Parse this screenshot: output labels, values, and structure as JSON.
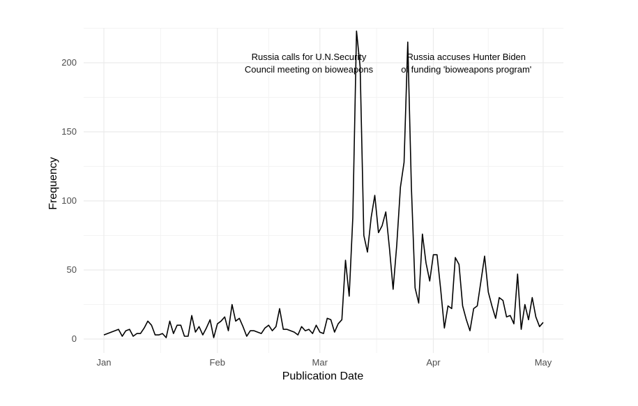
{
  "chart_data": {
    "type": "line",
    "title": "",
    "xlabel": "Publication Date",
    "ylabel": "Frequency",
    "ylim": [
      -10,
      228
    ],
    "yticks": [
      0,
      50,
      100,
      150,
      200
    ],
    "xticks": [
      {
        "label": "Jan",
        "day": 0
      },
      {
        "label": "Feb",
        "day": 31
      },
      {
        "label": "Mar",
        "day": 59
      },
      {
        "label": "Apr",
        "day": 90
      },
      {
        "label": "May",
        "day": 120
      }
    ],
    "x_start": "Jan 1",
    "x_unit": "day",
    "grid": true,
    "series": [
      {
        "name": "Frequency",
        "color": "#000000",
        "values": [
          3,
          4,
          5,
          6,
          7,
          2,
          6,
          7,
          2,
          4,
          4,
          8,
          13,
          10,
          3,
          3,
          4,
          1,
          13,
          4,
          10,
          10,
          2,
          2,
          17,
          5,
          9,
          3,
          8,
          14,
          1,
          11,
          13,
          16,
          6,
          25,
          13,
          15,
          9,
          2,
          6,
          6,
          5,
          4,
          8,
          10,
          6,
          9,
          22,
          7,
          7,
          6,
          5,
          3,
          9,
          6,
          7,
          4,
          10,
          5,
          4,
          15,
          14,
          5,
          11,
          14,
          57,
          31,
          88,
          223,
          197,
          75,
          63,
          88,
          104,
          77,
          82,
          92,
          66,
          36,
          68,
          110,
          128,
          215,
          110,
          37,
          26,
          76,
          55,
          42,
          61,
          61,
          36,
          8,
          24,
          22,
          59,
          54,
          24,
          14,
          6,
          22,
          24,
          42,
          60,
          34,
          24,
          15,
          30,
          28,
          16,
          17,
          11,
          47,
          7,
          25,
          14,
          30,
          16,
          9,
          12
        ]
      }
    ],
    "annotations": [
      {
        "lines": [
          "Russia calls for U.N.Security",
          "Council meeting on bioweapons"
        ],
        "day": 56,
        "y": 200
      },
      {
        "lines": [
          "Russia accuses Hunter Biden",
          "of funding 'bioweapons program'"
        ],
        "day": 99,
        "y": 200
      }
    ]
  }
}
